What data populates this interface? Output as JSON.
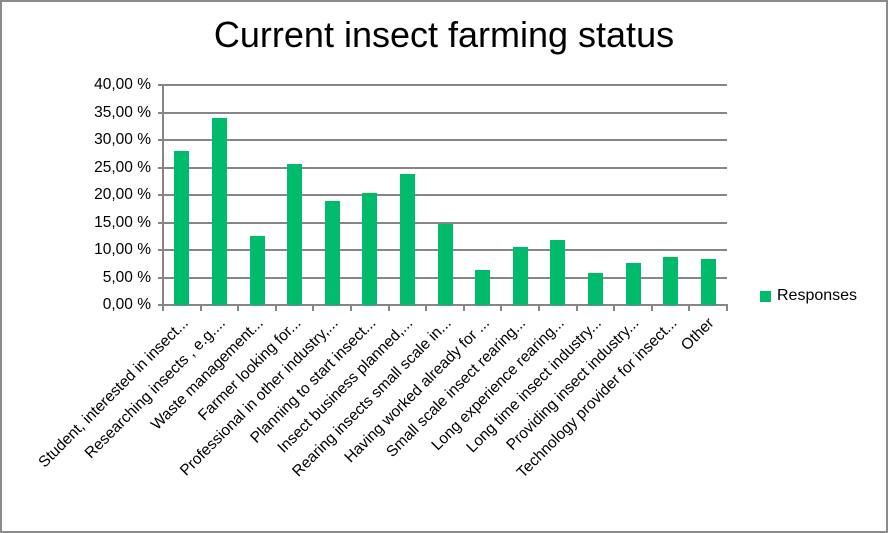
{
  "chart_data": {
    "type": "bar",
    "title": "Current insect farming status",
    "xlabel": "",
    "ylabel": "",
    "ylim": [
      0,
      40
    ],
    "yticks": [
      "0,00 %",
      "5,00 %",
      "10,00 %",
      "15,00 %",
      "20,00 %",
      "25,00 %",
      "30,00 %",
      "35,00 %",
      "40,00 %"
    ],
    "grid": true,
    "legend_position": "right",
    "categories": [
      "Student, interested in insect...",
      "Researching insects , e.g....",
      "Waste management...",
      "Farmer looking for...",
      "Professional in other industry,...",
      "Planning to start insect...",
      "Insect business planned,...",
      "Rearing insects small scale in...",
      "Having worked already for ...",
      "Small scale insect rearing...",
      "Long experience rearing...",
      "Long time insect industry...",
      "Providing insect industry...",
      "Technology provider for insect...",
      "Other"
    ],
    "series": [
      {
        "name": "Responses",
        "color": "#00bb6b",
        "values": [
          28.0,
          34.0,
          12.5,
          25.6,
          19.0,
          20.3,
          23.8,
          14.8,
          6.4,
          10.6,
          11.9,
          5.9,
          7.7,
          8.8,
          8.3
        ]
      }
    ]
  },
  "legend": {
    "label": "Responses"
  }
}
